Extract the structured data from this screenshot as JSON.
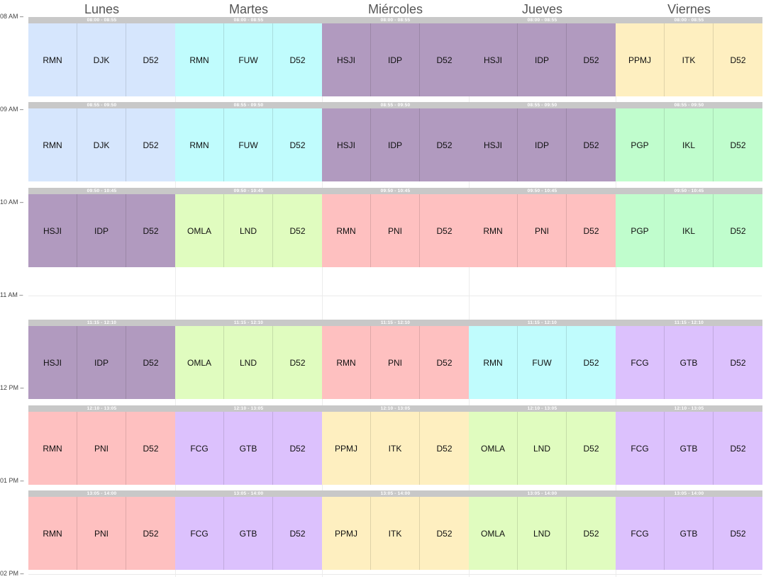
{
  "days": [
    "Lunes",
    "Martes",
    "Miércoles",
    "Jueves",
    "Viernes"
  ],
  "time_labels": [
    "08 AM",
    "09 AM",
    "10 AM",
    "11 AM",
    "12 PM",
    "01 PM",
    "02 PM"
  ],
  "colors": {
    "blue": "#d6e6fd",
    "cyan": "#c0fcfd",
    "purple": "#b19abf",
    "yellow": "#feefc0",
    "green": "#c0fdcd",
    "lime": "#e0fcbf",
    "pink": "#fec0c0",
    "lavender": "#dcc1fd",
    "header": "#c8c8c8"
  },
  "blocks": [
    {
      "day": 0,
      "span": 1,
      "slot": 0,
      "time": "08:00 - 08:55",
      "color": "blue",
      "items": [
        "RMN",
        "DJK",
        "D52"
      ]
    },
    {
      "day": 1,
      "span": 1,
      "slot": 0,
      "time": "08:00 - 08:55",
      "color": "cyan",
      "items": [
        "RMN",
        "FUW",
        "D52"
      ]
    },
    {
      "day": 2,
      "span": 1,
      "slot": 0,
      "time": "08:00 - 08:55",
      "color": "purple",
      "items": [
        "HSJI",
        "IDP",
        "D52"
      ]
    },
    {
      "day": 3,
      "span": 1,
      "slot": 0,
      "time": "08:00 - 08:55",
      "color": "purple",
      "items": [
        "HSJI",
        "IDP",
        "D52"
      ]
    },
    {
      "day": 4,
      "span": 1,
      "slot": 0,
      "time": "08:00 - 08:55",
      "color": "yellow",
      "items": [
        "PPMJ",
        "ITK",
        "D52"
      ]
    },
    {
      "day": 0,
      "span": 1,
      "slot": 1,
      "time": "08:55 - 09:50",
      "color": "blue",
      "items": [
        "RMN",
        "DJK",
        "D52"
      ]
    },
    {
      "day": 1,
      "span": 1,
      "slot": 1,
      "time": "08:55 - 09:50",
      "color": "cyan",
      "items": [
        "RMN",
        "FUW",
        "D52"
      ]
    },
    {
      "day": 2,
      "span": 1,
      "slot": 1,
      "time": "08:55 - 09:50",
      "color": "purple",
      "items": [
        "HSJI",
        "IDP",
        "D52"
      ]
    },
    {
      "day": 3,
      "span": 1,
      "slot": 1,
      "time": "08:55 - 09:50",
      "color": "purple",
      "items": [
        "HSJI",
        "IDP",
        "D52"
      ]
    },
    {
      "day": 4,
      "span": 1,
      "slot": 1,
      "time": "08:55 - 09:50",
      "color": "green",
      "items": [
        "PGP",
        "IKL",
        "D52"
      ]
    },
    {
      "day": 0,
      "span": 1,
      "slot": 2,
      "time": "09:50 - 10:45",
      "color": "purple",
      "items": [
        "HSJI",
        "IDP",
        "D52"
      ]
    },
    {
      "day": 1,
      "span": 1,
      "slot": 2,
      "time": "09:50 - 10:45",
      "color": "lime",
      "items": [
        "OMLA",
        "LND",
        "D52"
      ]
    },
    {
      "day": 2,
      "span": 1,
      "slot": 2,
      "time": "09:50 - 10:45",
      "color": "pink",
      "items": [
        "RMN",
        "PNI",
        "D52"
      ]
    },
    {
      "day": 3,
      "span": 1,
      "slot": 2,
      "time": "09:50 - 10:45",
      "color": "pink",
      "items": [
        "RMN",
        "PNI",
        "D52"
      ]
    },
    {
      "day": 4,
      "span": 1,
      "slot": 2,
      "time": "09:50 - 10:45",
      "color": "green",
      "items": [
        "PGP",
        "IKL",
        "D52"
      ]
    },
    {
      "day": 0,
      "span": 1,
      "slot": 3,
      "time": "11:15 - 12:10",
      "color": "purple",
      "items": [
        "HSJI",
        "IDP",
        "D52"
      ]
    },
    {
      "day": 1,
      "span": 1,
      "slot": 3,
      "time": "11:15 - 12:10",
      "color": "lime",
      "items": [
        "OMLA",
        "LND",
        "D52"
      ]
    },
    {
      "day": 2,
      "span": 1,
      "slot": 3,
      "time": "11:15 - 12:10",
      "color": "pink",
      "items": [
        "RMN",
        "PNI",
        "D52"
      ]
    },
    {
      "day": 3,
      "span": 1,
      "slot": 3,
      "time": "11:15 - 12:10",
      "color": "cyan",
      "items": [
        "RMN",
        "FUW",
        "D52"
      ]
    },
    {
      "day": 4,
      "span": 1,
      "slot": 3,
      "time": "11:15 - 12:10",
      "color": "lavender",
      "items": [
        "FCG",
        "GTB",
        "D52"
      ]
    },
    {
      "day": 0,
      "span": 1,
      "slot": 4,
      "time": "12:10 - 13:05",
      "color": "pink",
      "items": [
        "RMN",
        "PNI",
        "D52"
      ]
    },
    {
      "day": 1,
      "span": 1,
      "slot": 4,
      "time": "12:10 - 13:05",
      "color": "lavender",
      "items": [
        "FCG",
        "GTB",
        "D52"
      ]
    },
    {
      "day": 2,
      "span": 1,
      "slot": 4,
      "time": "12:10 - 13:05",
      "color": "yellow",
      "items": [
        "PPMJ",
        "ITK",
        "D52"
      ]
    },
    {
      "day": 3,
      "span": 1,
      "slot": 4,
      "time": "12:10 - 13:05",
      "color": "lime",
      "items": [
        "OMLA",
        "LND",
        "D52"
      ]
    },
    {
      "day": 4,
      "span": 1,
      "slot": 4,
      "time": "12:10 - 13:05",
      "color": "lavender",
      "items": [
        "FCG",
        "GTB",
        "D52"
      ]
    },
    {
      "day": 0,
      "span": 1,
      "slot": 5,
      "time": "13:05 - 14:00",
      "color": "pink",
      "items": [
        "RMN",
        "PNI",
        "D52"
      ]
    },
    {
      "day": 1,
      "span": 1,
      "slot": 5,
      "time": "13:05 - 14:00",
      "color": "lavender",
      "items": [
        "FCG",
        "GTB",
        "D52"
      ]
    },
    {
      "day": 2,
      "span": 1,
      "slot": 5,
      "time": "13:05 - 14:00",
      "color": "yellow",
      "items": [
        "PPMJ",
        "ITK",
        "D52"
      ]
    },
    {
      "day": 3,
      "span": 1,
      "slot": 5,
      "time": "13:05 - 14:00",
      "color": "lime",
      "items": [
        "OMLA",
        "LND",
        "D52"
      ]
    },
    {
      "day": 4,
      "span": 1,
      "slot": 5,
      "time": "13:05 - 14:00",
      "color": "lavender",
      "items": [
        "FCG",
        "GTB",
        "D52"
      ]
    }
  ]
}
